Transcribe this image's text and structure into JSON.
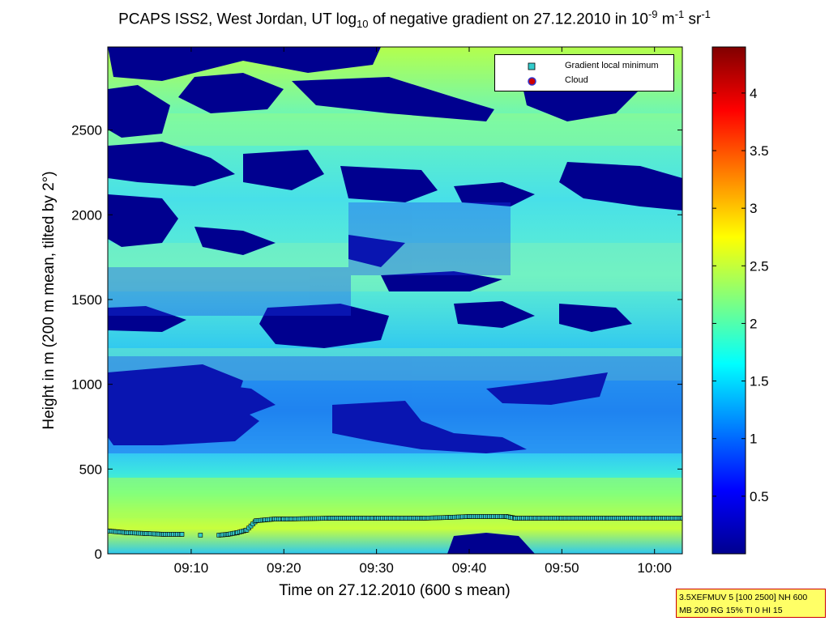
{
  "chart_data": {
    "type": "heatmap",
    "title_parts": {
      "prefix": "PCAPS ISS2, West Jordan, UT log",
      "sub": "10",
      "mid": " of negative gradient on 27.12.2010 in 10",
      "exp1": "-9",
      "unit_m": " m",
      "exp2": "-1",
      "unit_sr": " sr",
      "exp3": "-1"
    },
    "xlabel": "Time on 27.12.2010 (600 s mean)",
    "ylabel": "Height in m (200 m mean, tilted by 2°)",
    "x_range": [
      "09:01",
      "10:03"
    ],
    "x_ticks": [
      "09:10",
      "09:20",
      "09:30",
      "09:40",
      "09:50",
      "10:00"
    ],
    "ylim": [
      0,
      2990
    ],
    "y_ticks": [
      0,
      500,
      1000,
      1500,
      2000,
      2500
    ],
    "colorbar": {
      "colormap": "jet",
      "range": [
        0,
        4.4
      ],
      "ticks": [
        "0.5",
        "1",
        "1.5",
        "2",
        "2.5",
        "3",
        "3.5",
        "4"
      ]
    },
    "legend": {
      "position": "top-right",
      "entries": [
        {
          "label": "Gradient local minimum",
          "marker": "square",
          "color": "#33cccc"
        },
        {
          "label": "Cloud",
          "marker": "circle",
          "color": "#cc0000"
        }
      ]
    },
    "gradient_local_minimum": {
      "time": [
        "09:01",
        "09:03",
        "09:05",
        "09:07",
        "09:09",
        "09:10",
        "09:11",
        "09:12",
        "09:13",
        "09:14",
        "09:15",
        "09:16",
        "09:17",
        "09:18",
        "09:19",
        "09:20",
        "09:25",
        "09:30",
        "09:35",
        "09:38",
        "09:40",
        "09:44",
        "09:45",
        "09:50",
        "09:55",
        "10:00",
        "10:03"
      ],
      "height_m": [
        135,
        125,
        120,
        115,
        115,
        null,
        110,
        null,
        110,
        115,
        125,
        140,
        195,
        200,
        205,
        205,
        210,
        210,
        210,
        215,
        220,
        220,
        210,
        210,
        210,
        210,
        210
      ]
    },
    "cloud": {
      "time": [],
      "height_m": []
    }
  },
  "infobox": {
    "line1": "3.5XEFMUV 5 [100 2500] NH 600",
    "line2": "MB 200 RG 15% TI 0 HI 15"
  }
}
